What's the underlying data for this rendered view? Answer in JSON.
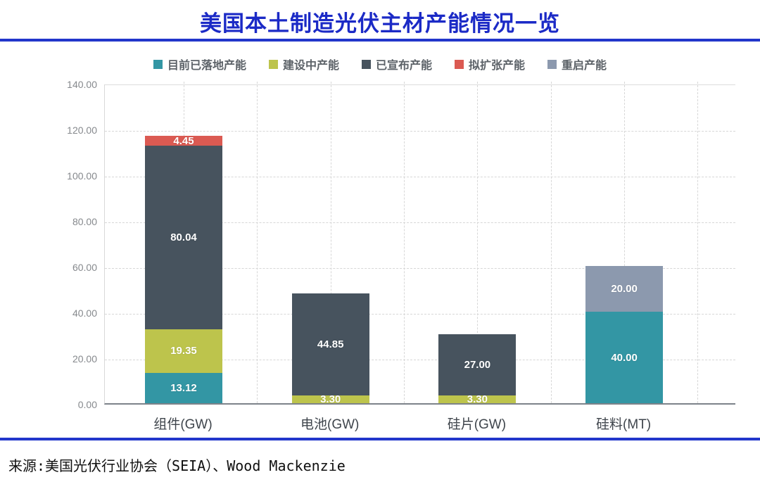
{
  "title": "美国本土制造光伏主材产能情况一览",
  "source_note": "来源:美国光伏行业协会（SEIA）、Wood Mackenzie",
  "colors": {
    "title_blue": "#1b2ac6",
    "rule_blue": "#2236cb",
    "axis_gray": "#7d838a",
    "grid_gray": "#d7d7d7",
    "tick_text": "#86898d",
    "legend_text": "#5c6268",
    "bar_value_text": "#ffffff"
  },
  "chart_data": {
    "type": "bar",
    "stacked": true,
    "title": "美国本土制造光伏主材产能情况一览",
    "categories": [
      "组件(GW)",
      "电池(GW)",
      "硅片(GW)",
      "硅料(MT)"
    ],
    "series": [
      {
        "name": "目前已落地产能",
        "color": "#3396a4",
        "values": [
          13.12,
          0,
          0,
          40.0
        ]
      },
      {
        "name": "建设中产能",
        "color": "#bdc44c",
        "values": [
          19.35,
          3.3,
          3.3,
          0
        ]
      },
      {
        "name": "已宣布产能",
        "color": "#47535e",
        "values": [
          80.04,
          44.85,
          27.0,
          0
        ]
      },
      {
        "name": "拟扩张产能",
        "color": "#db5a52",
        "values": [
          4.45,
          0,
          0,
          0
        ]
      },
      {
        "name": "重启产能",
        "color": "#8c99ae",
        "values": [
          0,
          0,
          0,
          20.0
        ]
      }
    ],
    "stack_totals": [
      116.96,
      48.15,
      30.3,
      60.0
    ],
    "xlabel": "",
    "ylabel": "",
    "ylim": [
      0,
      140
    ],
    "ytick_step": 20,
    "ytick_labels": [
      "0.00",
      "20.00",
      "40.00",
      "60.00",
      "80.00",
      "100.00",
      "120.00",
      "140.00"
    ],
    "value_labels_shown": [
      "13.12",
      "19.35",
      "80.04",
      "4.45",
      "3.30",
      "44.85",
      "3.30",
      "27.00",
      "40.00",
      "20.00"
    ],
    "grid": "dashed horizontal and vertical",
    "legend_position": "top-center"
  }
}
